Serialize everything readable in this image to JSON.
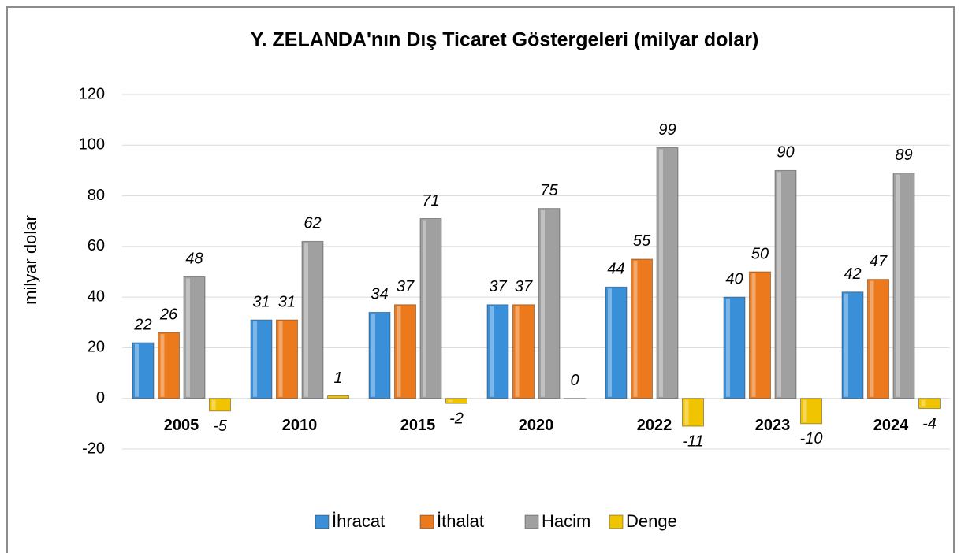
{
  "chart_data": {
    "type": "bar",
    "title": "Y. ZELANDA'nın Dış Ticaret Göstergeleri (milyar dolar)",
    "y_label": "milyar dolar",
    "categories": [
      "2005",
      "2010",
      "2015",
      "2020",
      "2022",
      "2023",
      "2024"
    ],
    "series": [
      {
        "name": "İhracat",
        "color": "#3a8fd9",
        "values": [
          22,
          31,
          34,
          37,
          44,
          40,
          42
        ]
      },
      {
        "name": "İthalat",
        "color": "#ec7a1c",
        "values": [
          26,
          31,
          37,
          37,
          55,
          50,
          47
        ]
      },
      {
        "name": "Hacim",
        "color": "#a0a0a0",
        "values": [
          48,
          62,
          71,
          75,
          99,
          90,
          89
        ]
      },
      {
        "name": "Denge",
        "color": "#f0c400",
        "values": [
          -5,
          1,
          -2,
          0,
          -11,
          -10,
          -4
        ]
      }
    ],
    "ylim": [
      -20,
      120
    ],
    "yticks": [
      -20,
      0,
      20,
      40,
      60,
      80,
      100,
      120
    ],
    "grid": true,
    "legend": "bottom"
  }
}
